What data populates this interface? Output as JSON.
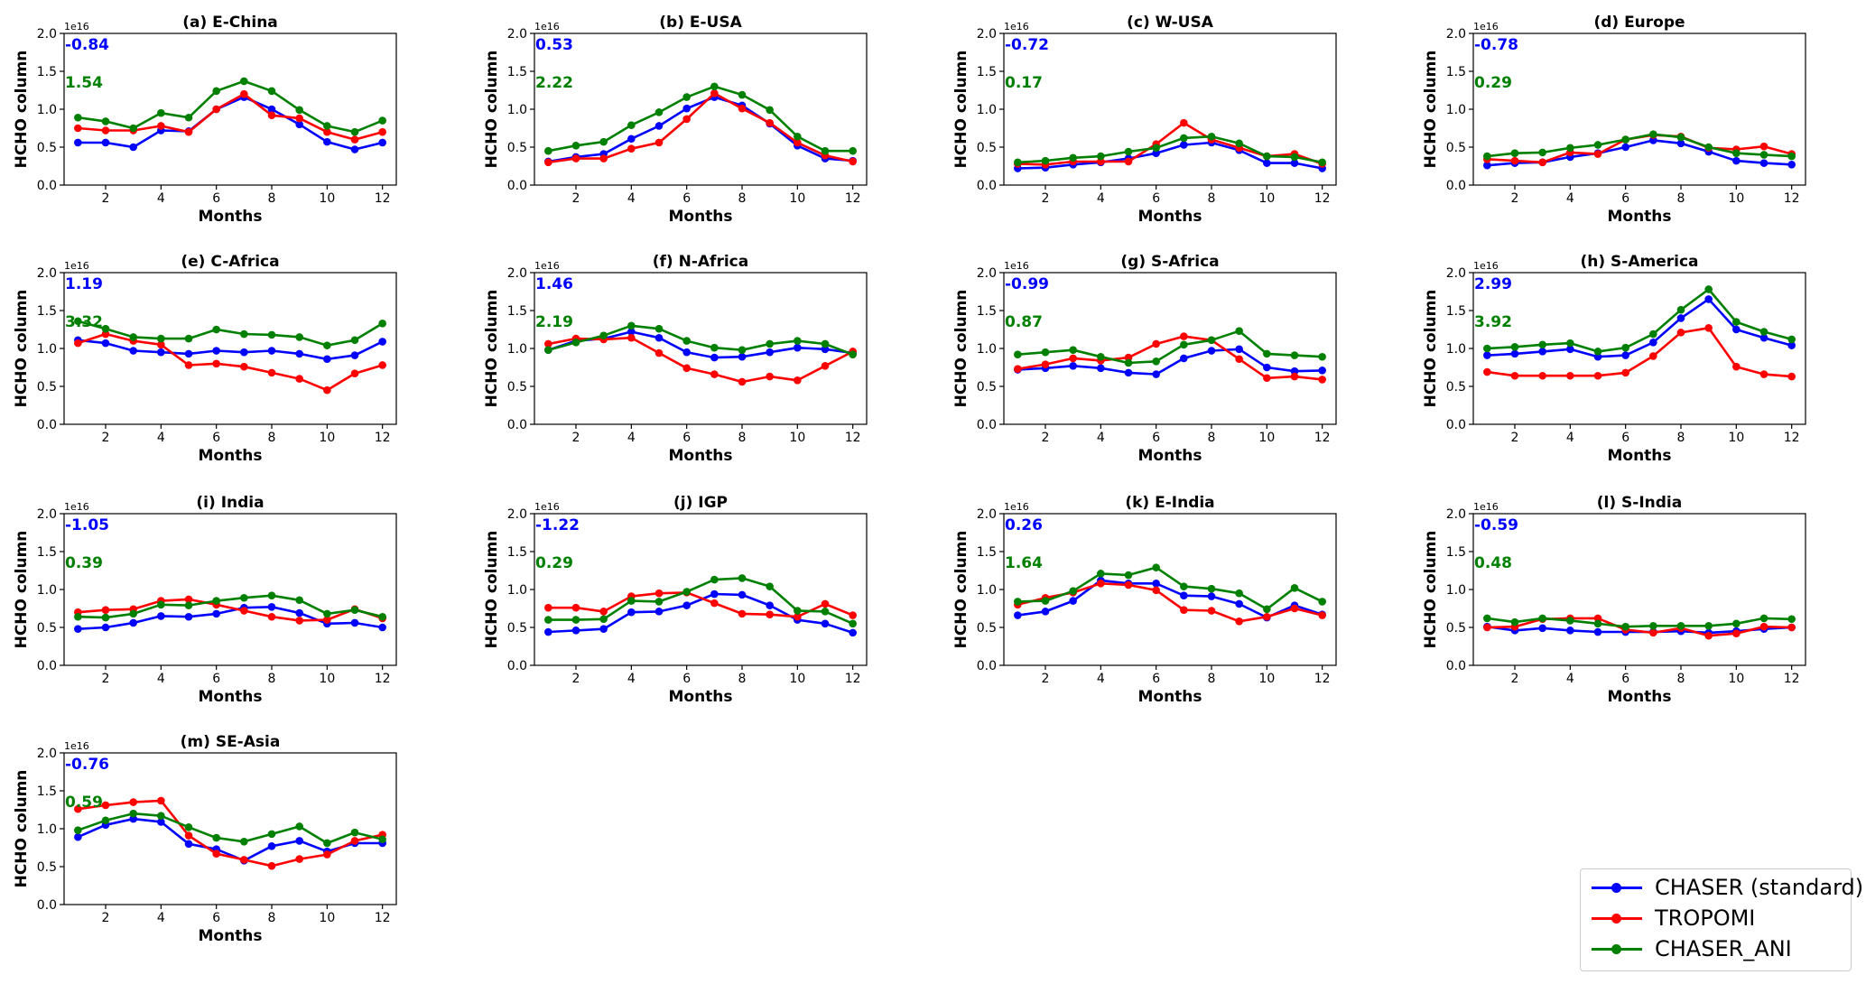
{
  "figure": {
    "x_axis_label": "Months",
    "y_axis_label": "HCHO column",
    "y_scale_label": "1e16",
    "x_ticks": [
      "2",
      "4",
      "6",
      "8",
      "10",
      "12"
    ],
    "y_ticks": [
      "0.0",
      "0.5",
      "1.0",
      "1.5",
      "2.0"
    ]
  },
  "legend": [
    {
      "label": "CHASER (standard)",
      "color": "#0000ff"
    },
    {
      "label": "TROPOMI",
      "color": "#ff0000"
    },
    {
      "label": "CHASER_ANI",
      "color": "#008000"
    }
  ],
  "chart_data": [
    {
      "type": "line",
      "title": "(a) E-China",
      "xlabel": "Months",
      "ylabel": "HCHO column",
      "xlim": [
        0.5,
        12.5
      ],
      "ylim": [
        0,
        2.0
      ],
      "annotations": [
        "-0.84",
        "1.54"
      ],
      "x": [
        1,
        2,
        3,
        4,
        5,
        6,
        7,
        8,
        9,
        10,
        11,
        12
      ],
      "series": [
        {
          "name": "CHASER (standard)",
          "values": [
            0.56,
            0.56,
            0.5,
            0.72,
            0.71,
            1.0,
            1.16,
            1.0,
            0.8,
            0.57,
            0.47,
            0.56
          ]
        },
        {
          "name": "TROPOMI",
          "values": [
            0.75,
            0.72,
            0.72,
            0.78,
            0.7,
            1.0,
            1.2,
            0.92,
            0.88,
            0.7,
            0.6,
            0.7
          ]
        },
        {
          "name": "CHASER_ANI",
          "values": [
            0.89,
            0.84,
            0.75,
            0.95,
            0.89,
            1.24,
            1.37,
            1.24,
            0.99,
            0.78,
            0.7,
            0.85
          ]
        }
      ]
    },
    {
      "type": "line",
      "title": "(b) E-USA",
      "xlabel": "Months",
      "ylabel": "HCHO column",
      "xlim": [
        0.5,
        12.5
      ],
      "ylim": [
        0,
        2.0
      ],
      "annotations": [
        "0.53",
        "2.22"
      ],
      "x": [
        1,
        2,
        3,
        4,
        5,
        6,
        7,
        8,
        9,
        10,
        11,
        12
      ],
      "series": [
        {
          "name": "CHASER (standard)",
          "values": [
            0.31,
            0.37,
            0.41,
            0.61,
            0.78,
            1.01,
            1.16,
            1.05,
            0.81,
            0.52,
            0.35,
            0.32
          ]
        },
        {
          "name": "TROPOMI",
          "values": [
            0.3,
            0.35,
            0.35,
            0.48,
            0.56,
            0.87,
            1.21,
            1.01,
            0.82,
            0.56,
            0.39,
            0.31
          ]
        },
        {
          "name": "CHASER_ANI",
          "values": [
            0.45,
            0.52,
            0.57,
            0.79,
            0.96,
            1.16,
            1.3,
            1.19,
            0.99,
            0.64,
            0.45,
            0.45
          ]
        }
      ]
    },
    {
      "type": "line",
      "title": "(c) W-USA",
      "xlabel": "Months",
      "ylabel": "HCHO column",
      "xlim": [
        0.5,
        12.5
      ],
      "ylim": [
        0,
        2.0
      ],
      "annotations": [
        "-0.72",
        "0.17"
      ],
      "x": [
        1,
        2,
        3,
        4,
        5,
        6,
        7,
        8,
        9,
        10,
        11,
        12
      ],
      "series": [
        {
          "name": "CHASER (standard)",
          "values": [
            0.22,
            0.23,
            0.27,
            0.3,
            0.35,
            0.42,
            0.53,
            0.56,
            0.46,
            0.29,
            0.29,
            0.22
          ]
        },
        {
          "name": "TROPOMI",
          "values": [
            0.28,
            0.27,
            0.31,
            0.31,
            0.31,
            0.54,
            0.82,
            0.6,
            0.49,
            0.38,
            0.41,
            0.28
          ]
        },
        {
          "name": "CHASER_ANI",
          "values": [
            0.3,
            0.32,
            0.36,
            0.38,
            0.44,
            0.49,
            0.62,
            0.64,
            0.55,
            0.38,
            0.37,
            0.3
          ]
        }
      ]
    },
    {
      "type": "line",
      "title": "(d) Europe",
      "xlabel": "Months",
      "ylabel": "HCHO column",
      "xlim": [
        0.5,
        12.5
      ],
      "ylim": [
        0,
        2.0
      ],
      "annotations": [
        "-0.78",
        "0.29"
      ],
      "x": [
        1,
        2,
        3,
        4,
        5,
        6,
        7,
        8,
        9,
        10,
        11,
        12
      ],
      "series": [
        {
          "name": "CHASER (standard)",
          "values": [
            0.26,
            0.29,
            0.3,
            0.37,
            0.42,
            0.5,
            0.59,
            0.55,
            0.44,
            0.32,
            0.29,
            0.27
          ]
        },
        {
          "name": "TROPOMI",
          "values": [
            0.34,
            0.32,
            0.3,
            0.43,
            0.41,
            0.6,
            0.66,
            0.64,
            0.49,
            0.47,
            0.51,
            0.41
          ]
        },
        {
          "name": "CHASER_ANI",
          "values": [
            0.38,
            0.42,
            0.43,
            0.49,
            0.53,
            0.6,
            0.67,
            0.63,
            0.5,
            0.42,
            0.4,
            0.38
          ]
        }
      ]
    },
    {
      "type": "line",
      "title": "(e) C-Africa",
      "xlabel": "Months",
      "ylabel": "HCHO column",
      "xlim": [
        0.5,
        12.5
      ],
      "ylim": [
        0,
        2.0
      ],
      "annotations": [
        "1.19",
        "3.32"
      ],
      "x": [
        1,
        2,
        3,
        4,
        5,
        6,
        7,
        8,
        9,
        10,
        11,
        12
      ],
      "series": [
        {
          "name": "CHASER (standard)",
          "values": [
            1.11,
            1.07,
            0.97,
            0.95,
            0.93,
            0.97,
            0.95,
            0.97,
            0.93,
            0.86,
            0.91,
            1.09
          ]
        },
        {
          "name": "TROPOMI",
          "values": [
            1.07,
            1.19,
            1.1,
            1.05,
            0.78,
            0.8,
            0.76,
            0.68,
            0.6,
            0.45,
            0.67,
            0.78
          ]
        },
        {
          "name": "CHASER_ANI",
          "values": [
            1.36,
            1.26,
            1.15,
            1.13,
            1.13,
            1.25,
            1.19,
            1.18,
            1.15,
            1.04,
            1.11,
            1.33
          ]
        }
      ]
    },
    {
      "type": "line",
      "title": "(f) N-Africa",
      "xlabel": "Months",
      "ylabel": "HCHO column",
      "xlim": [
        0.5,
        12.5
      ],
      "ylim": [
        0,
        2.0
      ],
      "annotations": [
        "1.46",
        "2.19"
      ],
      "x": [
        1,
        2,
        3,
        4,
        5,
        6,
        7,
        8,
        9,
        10,
        11,
        12
      ],
      "series": [
        {
          "name": "CHASER (standard)",
          "values": [
            0.98,
            1.1,
            1.13,
            1.22,
            1.14,
            0.95,
            0.88,
            0.89,
            0.95,
            1.01,
            0.99,
            0.94
          ]
        },
        {
          "name": "TROPOMI",
          "values": [
            1.06,
            1.13,
            1.12,
            1.14,
            0.94,
            0.74,
            0.66,
            0.56,
            0.63,
            0.58,
            0.77,
            0.96
          ]
        },
        {
          "name": "CHASER_ANI",
          "values": [
            0.98,
            1.08,
            1.17,
            1.3,
            1.26,
            1.1,
            1.01,
            0.98,
            1.06,
            1.1,
            1.06,
            0.92
          ]
        }
      ]
    },
    {
      "type": "line",
      "title": "(g) S-Africa",
      "xlabel": "Months",
      "ylabel": "HCHO column",
      "xlim": [
        0.5,
        12.5
      ],
      "ylim": [
        0,
        2.0
      ],
      "annotations": [
        "-0.99",
        "0.87"
      ],
      "x": [
        1,
        2,
        3,
        4,
        5,
        6,
        7,
        8,
        9,
        10,
        11,
        12
      ],
      "series": [
        {
          "name": "CHASER (standard)",
          "values": [
            0.72,
            0.74,
            0.77,
            0.74,
            0.68,
            0.66,
            0.87,
            0.97,
            0.99,
            0.75,
            0.7,
            0.71
          ]
        },
        {
          "name": "TROPOMI",
          "values": [
            0.73,
            0.79,
            0.87,
            0.84,
            0.88,
            1.06,
            1.16,
            1.11,
            0.86,
            0.61,
            0.63,
            0.59
          ]
        },
        {
          "name": "CHASER_ANI",
          "values": [
            0.92,
            0.95,
            0.98,
            0.89,
            0.81,
            0.83,
            1.05,
            1.11,
            1.23,
            0.93,
            0.91,
            0.89
          ]
        }
      ]
    },
    {
      "type": "line",
      "title": "(h) S-America",
      "xlabel": "Months",
      "ylabel": "HCHO column",
      "xlim": [
        0.5,
        12.5
      ],
      "ylim": [
        0,
        2.0
      ],
      "annotations": [
        "2.99",
        "3.92"
      ],
      "x": [
        1,
        2,
        3,
        4,
        5,
        6,
        7,
        8,
        9,
        10,
        11,
        12
      ],
      "series": [
        {
          "name": "CHASER (standard)",
          "values": [
            0.91,
            0.93,
            0.96,
            0.99,
            0.89,
            0.91,
            1.08,
            1.4,
            1.65,
            1.25,
            1.14,
            1.04
          ]
        },
        {
          "name": "TROPOMI",
          "values": [
            0.69,
            0.64,
            0.64,
            0.64,
            0.64,
            0.68,
            0.9,
            1.21,
            1.27,
            0.76,
            0.66,
            0.63
          ]
        },
        {
          "name": "CHASER_ANI",
          "values": [
            1.0,
            1.02,
            1.05,
            1.07,
            0.96,
            1.01,
            1.19,
            1.51,
            1.78,
            1.35,
            1.22,
            1.12
          ]
        }
      ]
    },
    {
      "type": "line",
      "title": "(i) India",
      "xlabel": "Months",
      "ylabel": "HCHO column",
      "xlim": [
        0.5,
        12.5
      ],
      "ylim": [
        0,
        2.0
      ],
      "annotations": [
        "-1.05",
        "0.39"
      ],
      "x": [
        1,
        2,
        3,
        4,
        5,
        6,
        7,
        8,
        9,
        10,
        11,
        12
      ],
      "series": [
        {
          "name": "CHASER (standard)",
          "values": [
            0.48,
            0.5,
            0.56,
            0.65,
            0.64,
            0.68,
            0.76,
            0.77,
            0.69,
            0.55,
            0.56,
            0.5
          ]
        },
        {
          "name": "TROPOMI",
          "values": [
            0.7,
            0.73,
            0.74,
            0.85,
            0.87,
            0.8,
            0.72,
            0.64,
            0.59,
            0.6,
            0.74,
            0.62
          ]
        },
        {
          "name": "CHASER_ANI",
          "values": [
            0.64,
            0.63,
            0.68,
            0.8,
            0.79,
            0.85,
            0.89,
            0.92,
            0.86,
            0.68,
            0.73,
            0.64
          ]
        }
      ]
    },
    {
      "type": "line",
      "title": "(j) IGP",
      "xlabel": "Months",
      "ylabel": "HCHO column",
      "xlim": [
        0.5,
        12.5
      ],
      "ylim": [
        0,
        2.0
      ],
      "annotations": [
        "-1.22",
        "0.29"
      ],
      "x": [
        1,
        2,
        3,
        4,
        5,
        6,
        7,
        8,
        9,
        10,
        11,
        12
      ],
      "series": [
        {
          "name": "CHASER (standard)",
          "values": [
            0.44,
            0.46,
            0.48,
            0.7,
            0.71,
            0.79,
            0.94,
            0.93,
            0.79,
            0.6,
            0.55,
            0.43
          ]
        },
        {
          "name": "TROPOMI",
          "values": [
            0.76,
            0.76,
            0.71,
            0.91,
            0.95,
            0.96,
            0.82,
            0.68,
            0.67,
            0.64,
            0.81,
            0.66
          ]
        },
        {
          "name": "CHASER_ANI",
          "values": [
            0.6,
            0.6,
            0.61,
            0.85,
            0.84,
            0.97,
            1.13,
            1.15,
            1.04,
            0.72,
            0.71,
            0.55
          ]
        }
      ]
    },
    {
      "type": "line",
      "title": "(k) E-India",
      "xlabel": "Months",
      "ylabel": "HCHO column",
      "xlim": [
        0.5,
        12.5
      ],
      "ylim": [
        0,
        2.0
      ],
      "annotations": [
        "0.26",
        "1.64"
      ],
      "x": [
        1,
        2,
        3,
        4,
        5,
        6,
        7,
        8,
        9,
        10,
        11,
        12
      ],
      "series": [
        {
          "name": "CHASER (standard)",
          "values": [
            0.66,
            0.71,
            0.85,
            1.12,
            1.08,
            1.08,
            0.92,
            0.91,
            0.81,
            0.63,
            0.79,
            0.67
          ]
        },
        {
          "name": "TROPOMI",
          "values": [
            0.8,
            0.89,
            0.96,
            1.08,
            1.06,
            0.99,
            0.73,
            0.72,
            0.58,
            0.64,
            0.75,
            0.66
          ]
        },
        {
          "name": "CHASER_ANI",
          "values": [
            0.84,
            0.85,
            0.98,
            1.21,
            1.19,
            1.29,
            1.04,
            1.01,
            0.95,
            0.74,
            1.02,
            0.84
          ]
        }
      ]
    },
    {
      "type": "line",
      "title": "(l) S-India",
      "xlabel": "Months",
      "ylabel": "HCHO column",
      "xlim": [
        0.5,
        12.5
      ],
      "ylim": [
        0,
        2.0
      ],
      "annotations": [
        "-0.59",
        "0.48"
      ],
      "x": [
        1,
        2,
        3,
        4,
        5,
        6,
        7,
        8,
        9,
        10,
        11,
        12
      ],
      "series": [
        {
          "name": "CHASER (standard)",
          "values": [
            0.51,
            0.46,
            0.49,
            0.46,
            0.44,
            0.44,
            0.44,
            0.45,
            0.43,
            0.45,
            0.48,
            0.5
          ]
        },
        {
          "name": "TROPOMI",
          "values": [
            0.5,
            0.51,
            0.61,
            0.62,
            0.62,
            0.47,
            0.43,
            0.49,
            0.39,
            0.42,
            0.51,
            0.5
          ]
        },
        {
          "name": "CHASER_ANI",
          "values": [
            0.62,
            0.57,
            0.62,
            0.59,
            0.55,
            0.51,
            0.52,
            0.52,
            0.52,
            0.55,
            0.62,
            0.61
          ]
        }
      ]
    },
    {
      "type": "line",
      "title": "(m) SE-Asia",
      "xlabel": "Months",
      "ylabel": "HCHO column",
      "xlim": [
        0.5,
        12.5
      ],
      "ylim": [
        0,
        2.0
      ],
      "annotations": [
        "-0.76",
        "0.59"
      ],
      "x": [
        1,
        2,
        3,
        4,
        5,
        6,
        7,
        8,
        9,
        10,
        11,
        12
      ],
      "series": [
        {
          "name": "CHASER (standard)",
          "values": [
            0.89,
            1.05,
            1.13,
            1.09,
            0.8,
            0.73,
            0.58,
            0.77,
            0.84,
            0.7,
            0.81,
            0.81
          ]
        },
        {
          "name": "TROPOMI",
          "values": [
            1.26,
            1.31,
            1.35,
            1.37,
            0.91,
            0.67,
            0.59,
            0.51,
            0.6,
            0.66,
            0.84,
            0.92
          ]
        },
        {
          "name": "CHASER_ANI",
          "values": [
            0.98,
            1.11,
            1.2,
            1.17,
            1.02,
            0.88,
            0.83,
            0.93,
            1.03,
            0.81,
            0.95,
            0.86
          ]
        }
      ]
    }
  ]
}
